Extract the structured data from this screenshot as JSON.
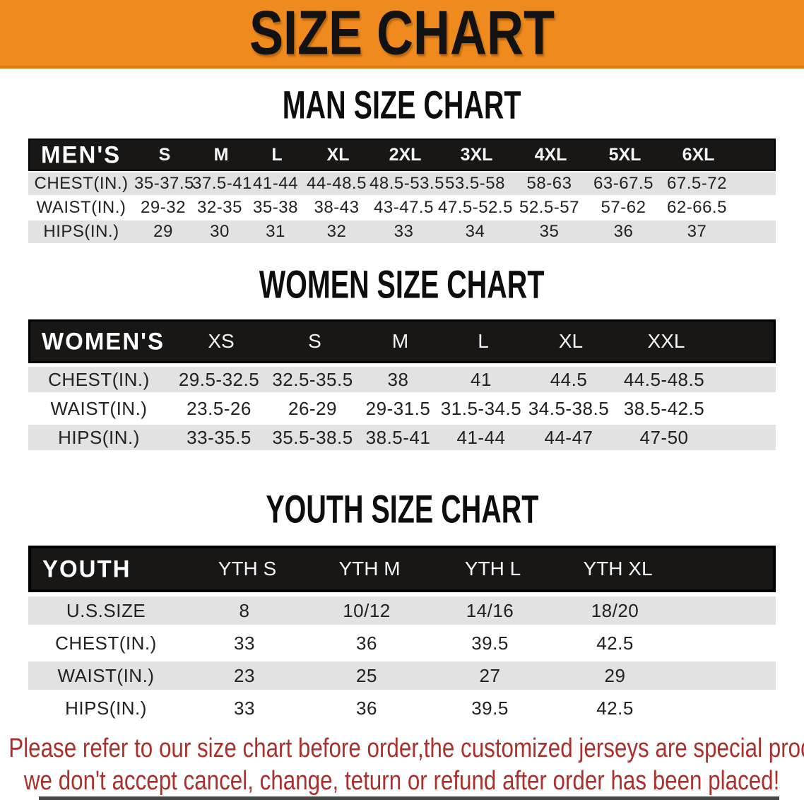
{
  "banner": {
    "title": "SIZE CHART",
    "bg_color": "#EF8A1E",
    "text_color": "#121212"
  },
  "colors": {
    "row_stripe_gray": "#E2E2E2",
    "table_header_black": "#191715",
    "footer_red": "#AB302B"
  },
  "sections": [
    {
      "heading": "MAN SIZE CHART",
      "table": {
        "corner": "MEN'S",
        "columns": [
          "S",
          "M",
          "L",
          "XL",
          "2XL",
          "3XL",
          "4XL",
          "5XL",
          "6XL"
        ],
        "rows": [
          {
            "label": "CHEST(IN.)",
            "values": [
              "35-37.5",
              "37.5-41",
              "41-44",
              "44-48.5",
              "48.5-53.5",
              "53.5-58",
              "58-63",
              "63-67.5",
              "67.5-72"
            ]
          },
          {
            "label": "WAIST(IN.)",
            "values": [
              "29-32",
              "32-35",
              "35-38",
              "38-43",
              "43-47.5",
              "47.5-52.5",
              "52.5-57",
              "57-62",
              "62-66.5"
            ]
          },
          {
            "label": "HIPS(IN.)",
            "values": [
              "29",
              "30",
              "31",
              "32",
              "33",
              "34",
              "35",
              "36",
              "37"
            ]
          }
        ]
      }
    },
    {
      "heading": "WOMEN SIZE CHART",
      "table": {
        "corner": "WOMEN'S",
        "columns": [
          "XS",
          "S",
          "M",
          "L",
          "XL",
          "XXL"
        ],
        "rows": [
          {
            "label": "CHEST(IN.)",
            "values": [
              "29.5-32.5",
              "32.5-35.5",
              "38",
              "41",
              "44.5",
              "44.5-48.5"
            ]
          },
          {
            "label": "WAIST(IN.)",
            "values": [
              "23.5-26",
              "26-29",
              "29-31.5",
              "31.5-34.5",
              "34.5-38.5",
              "38.5-42.5"
            ]
          },
          {
            "label": "HIPS(IN.)",
            "values": [
              "33-35.5",
              "35.5-38.5",
              "38.5-41",
              "41-44",
              "44-47",
              "47-50"
            ]
          }
        ]
      }
    },
    {
      "heading": "YOUTH SIZE CHART",
      "table": {
        "corner": "YOUTH",
        "columns": [
          "YTH S",
          "YTH M",
          "YTH L",
          "YTH XL"
        ],
        "rows": [
          {
            "label": "U.S.SIZE",
            "values": [
              "8",
              "10/12",
              "14/16",
              "18/20"
            ]
          },
          {
            "label": "CHEST(IN.)",
            "values": [
              "33",
              "36",
              "39.5",
              "42.5"
            ]
          },
          {
            "label": "WAIST(IN.)",
            "values": [
              "23",
              "25",
              "27",
              "29"
            ]
          },
          {
            "label": "HIPS(IN.)",
            "values": [
              "33",
              "36",
              "39.5",
              "42.5"
            ]
          }
        ]
      }
    }
  ],
  "footer": {
    "line1": "Please refer to our size chart before order,the customized jerseys are special products,",
    "line2": "we don't accept cancel, change, teturn or refund after order has been placed!"
  }
}
